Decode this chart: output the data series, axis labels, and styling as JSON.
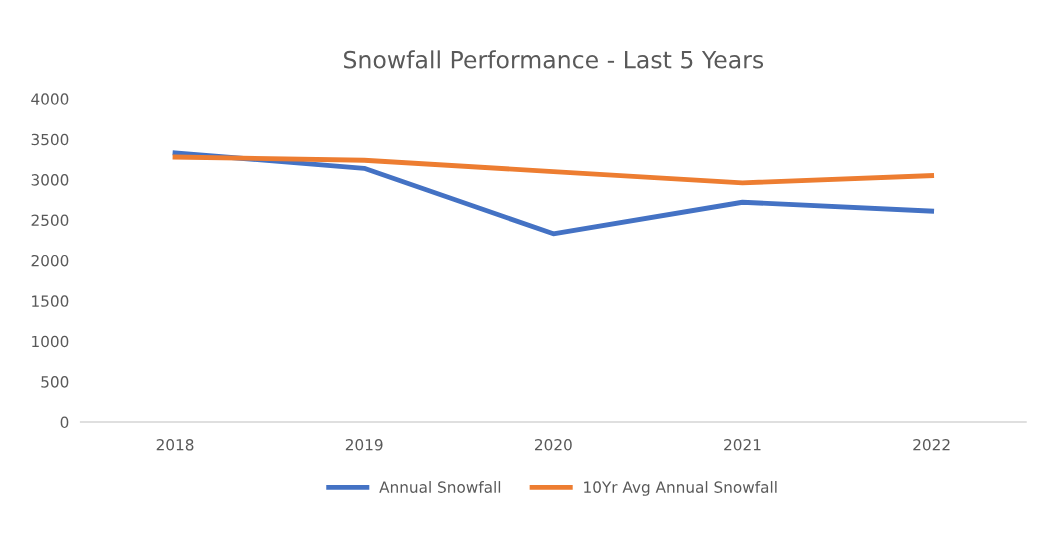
{
  "chart_data": {
    "type": "line",
    "title": "Snowfall Performance - Last 5 Years",
    "categories": [
      "2018",
      "2019",
      "2020",
      "2021",
      "2022"
    ],
    "series": [
      {
        "name": "Annual Snowfall",
        "color": "#4472c4",
        "values": [
          3330,
          3140,
          2330,
          2720,
          2610
        ]
      },
      {
        "name": "10Yr Avg Annual Snowfall",
        "color": "#ed7d31",
        "values": [
          3280,
          3240,
          3100,
          2960,
          3050
        ]
      }
    ],
    "ylim": [
      0,
      4000
    ],
    "yticks": [
      0,
      500,
      1000,
      1500,
      2000,
      2500,
      3000,
      3500,
      4000
    ],
    "grid": false,
    "legend": "bottom",
    "marker": "none",
    "line_style": "solid"
  }
}
